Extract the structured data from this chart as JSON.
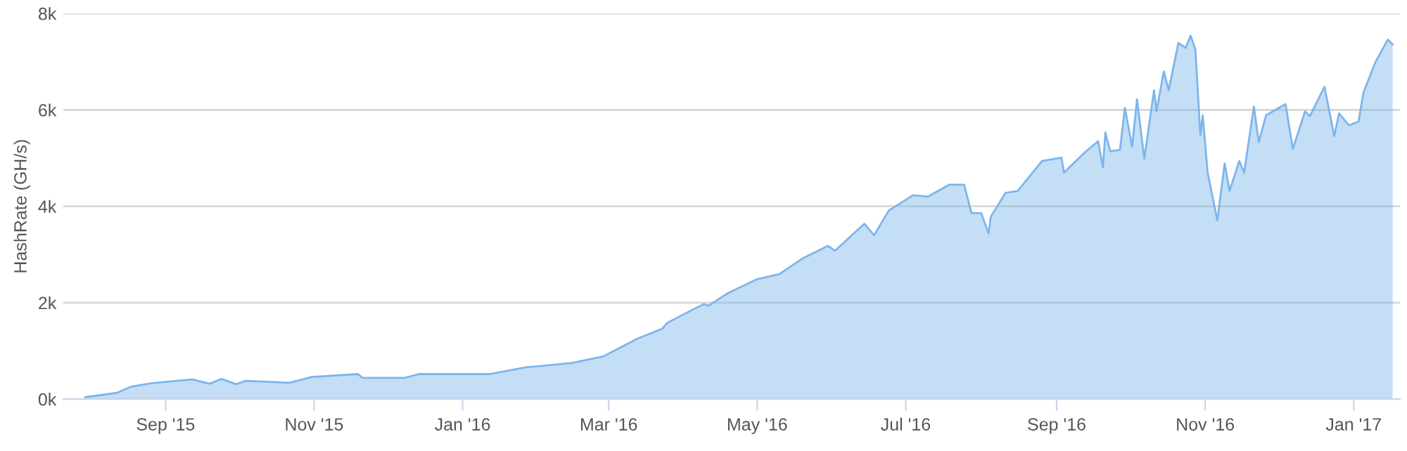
{
  "chart_data": {
    "type": "area",
    "ylabel": "HashRate (GH/s)",
    "xlim": [
      "2015-07-21",
      "2017-01-20"
    ],
    "xticks": [
      {
        "value": "2015-09-01",
        "label": "Sep '15"
      },
      {
        "value": "2015-11-01",
        "label": "Nov '15"
      },
      {
        "value": "2016-01-01",
        "label": "Jan '16"
      },
      {
        "value": "2016-03-01",
        "label": "Mar '16"
      },
      {
        "value": "2016-05-01",
        "label": "May '16"
      },
      {
        "value": "2016-07-01",
        "label": "Jul '16"
      },
      {
        "value": "2016-09-01",
        "label": "Sep '16"
      },
      {
        "value": "2016-11-01",
        "label": "Nov '16"
      },
      {
        "value": "2017-01-01",
        "label": "Jan '17"
      }
    ],
    "ylim": [
      0,
      8000
    ],
    "yticks": [
      {
        "value": 0,
        "label": "0k"
      },
      {
        "value": 2000,
        "label": "2k"
      },
      {
        "value": 4000,
        "label": "4k"
      },
      {
        "value": 6000,
        "label": "6k"
      },
      {
        "value": 8000,
        "label": "8k"
      }
    ],
    "grid": "y",
    "x": [
      "2015-07-30",
      "2015-08-12",
      "2015-08-18",
      "2015-08-26",
      "2015-09-12",
      "2015-09-19",
      "2015-09-24",
      "2015-09-30",
      "2015-10-04",
      "2015-10-22",
      "2015-10-31",
      "2015-11-19",
      "2015-11-21",
      "2015-12-08",
      "2015-12-14",
      "2016-01-12",
      "2016-01-27",
      "2016-02-15",
      "2016-02-28",
      "2016-03-13",
      "2016-03-23",
      "2016-03-25",
      "2016-04-05",
      "2016-04-09",
      "2016-04-11",
      "2016-04-19",
      "2016-05-01",
      "2016-05-10",
      "2016-05-20",
      "2016-05-30",
      "2016-06-02",
      "2016-06-14",
      "2016-06-18",
      "2016-06-24",
      "2016-07-04",
      "2016-07-10",
      "2016-07-19",
      "2016-07-25",
      "2016-07-28",
      "2016-08-01",
      "2016-08-04",
      "2016-08-05",
      "2016-08-11",
      "2016-08-16",
      "2016-08-26",
      "2016-09-03",
      "2016-09-04",
      "2016-09-13",
      "2016-09-18",
      "2016-09-20",
      "2016-09-21",
      "2016-09-23",
      "2016-09-27",
      "2016-09-29",
      "2016-10-02",
      "2016-10-04",
      "2016-10-07",
      "2016-10-11",
      "2016-10-12",
      "2016-10-15",
      "2016-10-17",
      "2016-10-21",
      "2016-10-24",
      "2016-10-26",
      "2016-10-28",
      "2016-10-30",
      "2016-10-31",
      "2016-11-02",
      "2016-11-06",
      "2016-11-09",
      "2016-11-11",
      "2016-11-15",
      "2016-11-17",
      "2016-11-21",
      "2016-11-23",
      "2016-11-26",
      "2016-12-04",
      "2016-12-07",
      "2016-12-12",
      "2016-12-14",
      "2016-12-20",
      "2016-12-24",
      "2016-12-26",
      "2016-12-30",
      "2017-01-03",
      "2017-01-05",
      "2017-01-10",
      "2017-01-15",
      "2017-01-17"
    ],
    "series": [
      {
        "color": "#7cb5ec",
        "values": [
          40,
          130,
          260,
          330,
          410,
          320,
          420,
          310,
          380,
          340,
          460,
          520,
          440,
          440,
          520,
          520,
          660,
          750,
          890,
          1260,
          1460,
          1580,
          1870,
          1970,
          1940,
          2200,
          2490,
          2590,
          2930,
          3180,
          3080,
          3640,
          3400,
          3910,
          4230,
          4200,
          4450,
          4450,
          3860,
          3860,
          3440,
          3790,
          4280,
          4320,
          4940,
          5010,
          4700,
          5140,
          5350,
          4810,
          5530,
          5140,
          5170,
          6040,
          5240,
          6220,
          4990,
          6410,
          5970,
          6800,
          6410,
          7390,
          7290,
          7540,
          7250,
          5480,
          5890,
          4700,
          3710,
          4890,
          4320,
          4940,
          4700,
          6070,
          5330,
          5890,
          6120,
          5190,
          5970,
          5870,
          6480,
          5460,
          5930,
          5680,
          5760,
          6360,
          7000,
          7460,
          7360
        ]
      }
    ]
  }
}
